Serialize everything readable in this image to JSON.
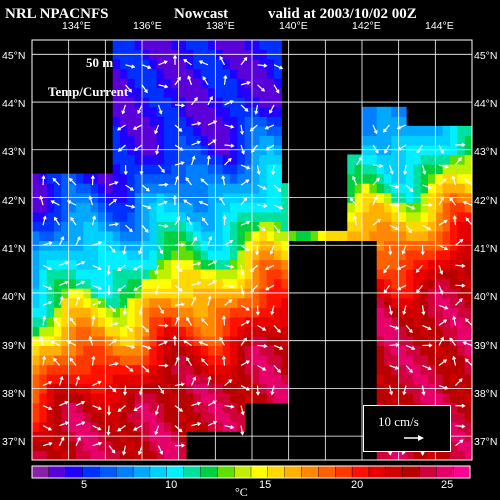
{
  "header": {
    "source": "NRL NPACNFS",
    "mode": "Nowcast",
    "valid": "valid at 2003/10/02 00Z"
  },
  "map": {
    "depth_label": "50 m",
    "field_label": "Temp/Current",
    "lon_labels": [
      "134°E",
      "136°E",
      "138°E",
      "140°E",
      "142°E",
      "144°E"
    ],
    "lat_labels": [
      "45°N",
      "44°N",
      "43°N",
      "42°N",
      "41°N",
      "40°N",
      "39°N",
      "38°N",
      "37°N"
    ],
    "lon_range": [
      133,
      145
    ],
    "lat_range": [
      36.5,
      45.3
    ]
  },
  "scale_vector": {
    "label": "10 cm/s"
  },
  "colorbar": {
    "unit": "°C",
    "ticks": [
      "5",
      "10",
      "15",
      "20",
      "25"
    ],
    "range": [
      0,
      27
    ],
    "colors": [
      "#8a1fa8",
      "#5a00d8",
      "#2000ff",
      "#0030ff",
      "#0058ff",
      "#0080ff",
      "#00a8ff",
      "#00d0ff",
      "#00f0ff",
      "#00e0a0",
      "#00d040",
      "#60e000",
      "#c0f000",
      "#ffff00",
      "#ffd800",
      "#ffb000",
      "#ff8800",
      "#ff6000",
      "#ff3800",
      "#ff1000",
      "#e80000",
      "#d00000",
      "#b80000",
      "#d00038",
      "#e8006a",
      "#ff0090"
    ]
  }
}
